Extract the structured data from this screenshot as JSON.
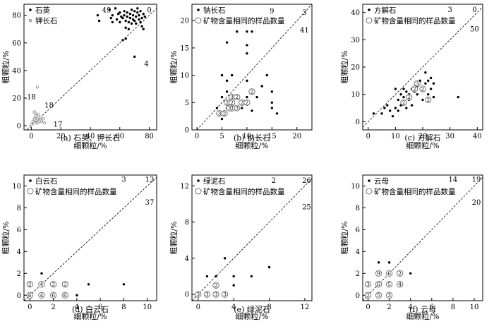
{
  "chart_data": [
    {
      "type": "scatter",
      "caption": "(a) 石英、钾长石",
      "xlabel": "细颗粒/%",
      "ylabel": "粗颗粒/%",
      "xlim": [
        -5,
        85
      ],
      "ylim": [
        -3,
        88
      ],
      "xticks": [
        0,
        20,
        40,
        60,
        80
      ],
      "yticks": [
        0,
        20,
        40,
        60,
        80
      ],
      "legend": [
        "石英",
        "钾长石"
      ],
      "counts": [
        {
          "text": "49",
          "x": 51,
          "y": 84
        },
        {
          "text": "0",
          "x": 80,
          "y": 84
        },
        {
          "text": "4",
          "x": 78,
          "y": 45
        },
        {
          "text": "18",
          "x": 0,
          "y": 21
        },
        {
          "text": "18",
          "x": 12,
          "y": 15
        },
        {
          "text": "17",
          "x": 18,
          "y": 1
        }
      ],
      "series": [
        {
          "name": "石英",
          "marker": "dot",
          "points": [
            [
              45,
              80
            ],
            [
              46,
              76
            ],
            [
              53,
              84
            ],
            [
              54,
              78
            ],
            [
              55,
              75
            ],
            [
              55,
              80
            ],
            [
              57,
              85
            ],
            [
              58,
              77
            ],
            [
              59,
              81
            ],
            [
              60,
              75
            ],
            [
              60,
              82
            ],
            [
              61,
              79
            ],
            [
              62,
              62
            ],
            [
              62,
              78
            ],
            [
              63,
              80
            ],
            [
              63,
              83
            ],
            [
              64,
              63
            ],
            [
              64,
              76
            ],
            [
              65,
              79
            ],
            [
              65,
              82
            ],
            [
              66,
              70
            ],
            [
              66,
              75
            ],
            [
              67,
              78
            ],
            [
              67,
              81
            ],
            [
              68,
              84
            ],
            [
              68,
              74
            ],
            [
              69,
              77
            ],
            [
              69,
              80
            ],
            [
              70,
              83
            ],
            [
              70,
              76
            ],
            [
              71,
              79
            ],
            [
              71,
              74
            ],
            [
              72,
              82
            ],
            [
              72,
              85
            ],
            [
              73,
              77
            ],
            [
              73,
              80
            ],
            [
              74,
              75
            ],
            [
              74,
              83
            ],
            [
              75,
              78
            ],
            [
              75,
              72
            ],
            [
              76,
              81
            ],
            [
              76,
              70
            ],
            [
              77,
              79
            ],
            [
              64,
              71
            ],
            [
              70,
              50
            ]
          ]
        },
        {
          "name": "钾长石",
          "marker": "open-small",
          "points": [
            [
              0,
              1
            ],
            [
              1,
              3
            ],
            [
              2,
              5
            ],
            [
              2,
              2
            ],
            [
              3,
              4
            ],
            [
              3,
              7
            ],
            [
              4,
              2
            ],
            [
              4,
              5
            ],
            [
              5,
              3
            ],
            [
              5,
              8
            ],
            [
              3,
              9
            ],
            [
              6,
              4
            ],
            [
              6,
              6
            ],
            [
              7,
              3
            ],
            [
              8,
              5
            ],
            [
              2,
              10
            ],
            [
              4,
              28
            ],
            [
              9,
              2
            ]
          ]
        }
      ]
    },
    {
      "type": "scatter",
      "caption": "(b) 钠长石",
      "xlabel": "细颗粒/%",
      "ylabel": "粗颗粒/%",
      "xlim": [
        -1,
        23
      ],
      "ylim": [
        0,
        23
      ],
      "xticks": [
        0,
        5,
        10,
        15,
        20
      ],
      "yticks": [
        0,
        5,
        10,
        15,
        20
      ],
      "legend": [
        "钠长石",
        "矿物含量相同的样品数量"
      ],
      "counts": [
        {
          "text": "9",
          "x": 15,
          "y": 21.8
        },
        {
          "text": "3",
          "x": 21.5,
          "y": 21.5
        },
        {
          "text": "41",
          "x": 21.5,
          "y": 18.3
        }
      ],
      "series": [
        {
          "name": "钠长石",
          "marker": "dot",
          "points": [
            [
              6,
              16
            ],
            [
              8,
              18
            ],
            [
              10,
              18
            ],
            [
              11,
              18
            ],
            [
              10,
              15.5
            ],
            [
              10,
              14
            ],
            [
              5,
              10
            ],
            [
              6,
              9
            ],
            [
              7,
              10
            ],
            [
              10,
              9
            ],
            [
              14,
              10
            ],
            [
              4,
              4
            ],
            [
              5,
              6
            ],
            [
              5,
              2
            ],
            [
              6,
              4
            ],
            [
              7,
              5
            ],
            [
              8,
              6
            ],
            [
              9,
              4
            ],
            [
              10,
              6
            ],
            [
              12,
              6
            ],
            [
              13,
              8
            ],
            [
              15,
              7
            ],
            [
              15,
              5
            ],
            [
              15,
              4
            ],
            [
              16,
              3
            ],
            [
              6,
              7
            ],
            [
              11,
              3.5
            ]
          ]
        },
        {
          "name": "矿物含量相同的样品数量",
          "marker": "circled",
          "points": [
            [
              4.5,
              3,
              "3"
            ],
            [
              5.5,
              3,
              "2"
            ],
            [
              6,
              5,
              "2"
            ],
            [
              7,
              6,
              "3"
            ],
            [
              8,
              6,
              "2"
            ],
            [
              7,
              5,
              "2"
            ],
            [
              8,
              4,
              "3"
            ],
            [
              7,
              4,
              "2"
            ],
            [
              9,
              5,
              "2"
            ],
            [
              10,
              5,
              "2"
            ],
            [
              11,
              7,
              "2"
            ],
            [
              6.5,
              4,
              "3"
            ]
          ]
        }
      ]
    },
    {
      "type": "scatter",
      "caption": "(c) 方解石",
      "xlabel": "细颗粒/%",
      "ylabel": "粗颗粒/%",
      "xlim": [
        -2,
        42
      ],
      "ylim": [
        -3,
        43
      ],
      "xticks": [
        0,
        10,
        20,
        30,
        40
      ],
      "yticks": [
        0,
        10,
        20,
        30,
        40
      ],
      "legend": [
        "方解石",
        "矿物含量相同的样品数量"
      ],
      "counts": [
        {
          "text": "3",
          "x": 30,
          "y": 41
        },
        {
          "text": "0",
          "x": 39,
          "y": 41
        },
        {
          "text": "50",
          "x": 39,
          "y": 34
        }
      ],
      "series": [
        {
          "name": "方解石",
          "marker": "dot",
          "points": [
            [
              2,
              3
            ],
            [
              5,
              3
            ],
            [
              6,
              5
            ],
            [
              7,
              6
            ],
            [
              8,
              4
            ],
            [
              9,
              2
            ],
            [
              10,
              5
            ],
            [
              10,
              12
            ],
            [
              11,
              8
            ],
            [
              11,
              4
            ],
            [
              12,
              10
            ],
            [
              12,
              6
            ],
            [
              13,
              9
            ],
            [
              13,
              12
            ],
            [
              14,
              5
            ],
            [
              14,
              11
            ],
            [
              15,
              10
            ],
            [
              15,
              8
            ],
            [
              16,
              12
            ],
            [
              16,
              6
            ],
            [
              17,
              11
            ],
            [
              18,
              10
            ],
            [
              18,
              13
            ],
            [
              19,
              15
            ],
            [
              20,
              12
            ],
            [
              20,
              8
            ],
            [
              21,
              18
            ],
            [
              21,
              14
            ],
            [
              22,
              10
            ],
            [
              22,
              15
            ],
            [
              23,
              12
            ],
            [
              23,
              16
            ],
            [
              24,
              9
            ],
            [
              24,
              14
            ],
            [
              33,
              9
            ]
          ]
        },
        {
          "name": "矿物含量相同的样品数量",
          "marker": "circled",
          "points": [
            [
              13,
              7,
              "2"
            ],
            [
              15,
              9,
              "2"
            ],
            [
              17,
              12,
              "2"
            ],
            [
              18,
              14,
              "3"
            ],
            [
              20,
              12,
              "2"
            ],
            [
              22,
              8,
              "2"
            ]
          ]
        }
      ]
    },
    {
      "type": "scatter",
      "caption": "(d) 白云石",
      "xlabel": "细颗粒/%",
      "ylabel": "粗颗粒/%",
      "xlim": [
        -0.5,
        10.8
      ],
      "ylim": [
        -0.5,
        11
      ],
      "xticks": [
        0,
        2,
        4,
        6,
        8,
        10
      ],
      "yticks": [
        0,
        2,
        4,
        6,
        8,
        10
      ],
      "legend": [
        "白云石",
        "矿物含量相同的样品数量"
      ],
      "counts": [
        {
          "text": "3",
          "x": 8,
          "y": 10.6
        },
        {
          "text": "13",
          "x": 10.2,
          "y": 10.6
        },
        {
          "text": "37",
          "x": 10.2,
          "y": 8.5
        }
      ],
      "series": [
        {
          "name": "白云石",
          "marker": "dot",
          "points": [
            [
              1,
              2
            ],
            [
              5,
              1
            ],
            [
              8,
              1
            ],
            [
              4,
              0
            ]
          ]
        },
        {
          "name": "矿物含量相同的样品数量",
          "marker": "circled",
          "points": [
            [
              0,
              1,
              "2"
            ],
            [
              1,
              1,
              "4"
            ],
            [
              2,
              1,
              "2"
            ],
            [
              3,
              1,
              "2"
            ],
            [
              0,
              0,
              "6"
            ],
            [
              1,
              0,
              "4"
            ],
            [
              2,
              0,
              "6"
            ],
            [
              3,
              0,
              "6"
            ]
          ]
        }
      ]
    },
    {
      "type": "scatter",
      "caption": "(e) 绿泥石",
      "xlabel": "细颗粒/%",
      "ylabel": "粗颗粒/%",
      "xlim": [
        -0.7,
        12.8
      ],
      "ylim": [
        -0.7,
        13.2
      ],
      "xticks": [
        0,
        4,
        8,
        12
      ],
      "yticks": [
        0,
        4,
        8,
        12
      ],
      "legend": [
        "绿泥石",
        "矿物含量相同的样品数量"
      ],
      "counts": [
        {
          "text": "2",
          "x": 8.5,
          "y": 12.6
        },
        {
          "text": "26",
          "x": 12.2,
          "y": 12.6
        },
        {
          "text": "25",
          "x": 12.2,
          "y": 9.7
        }
      ],
      "series": [
        {
          "name": "绿泥石",
          "marker": "dot",
          "points": [
            [
              1,
              2
            ],
            [
              2,
              2
            ],
            [
              3,
              4
            ],
            [
              4,
              1
            ],
            [
              4,
              2
            ],
            [
              6,
              2
            ],
            [
              8,
              3
            ]
          ]
        },
        {
          "name": "矿物含量相同的样品数量",
          "marker": "circled",
          "points": [
            [
              2,
              1,
              "2"
            ],
            [
              0,
              0,
              "3"
            ],
            [
              1,
              0,
              "3"
            ],
            [
              2,
              0,
              "3"
            ],
            [
              3,
              0,
              "3"
            ]
          ]
        }
      ]
    },
    {
      "type": "scatter",
      "caption": "(f) 云母",
      "xlabel": "细颗粒/%",
      "ylabel": "粗颗粒/%",
      "xlim": [
        -0.5,
        10.8
      ],
      "ylim": [
        -0.5,
        11
      ],
      "xticks": [
        0,
        2,
        4,
        6,
        8,
        10
      ],
      "yticks": [
        0,
        2,
        4,
        6,
        8,
        10
      ],
      "legend": [
        "云母",
        "矿物含量相同的样品数量"
      ],
      "counts": [
        {
          "text": "14",
          "x": 8,
          "y": 10.6
        },
        {
          "text": "19",
          "x": 10.2,
          "y": 10.6
        },
        {
          "text": "20",
          "x": 10.2,
          "y": 8.5
        }
      ],
      "series": [
        {
          "name": "云母",
          "marker": "dot",
          "points": [
            [
              1,
              3
            ],
            [
              2,
              3
            ],
            [
              4,
              2
            ]
          ]
        },
        {
          "name": "矿物含量相同的样品数量",
          "marker": "circled",
          "points": [
            [
              1,
              2,
              "9"
            ],
            [
              2,
              2,
              "6"
            ],
            [
              3,
              2,
              "2"
            ],
            [
              0,
              1,
              "3"
            ],
            [
              1,
              1,
              "6"
            ],
            [
              2,
              1,
              "5"
            ],
            [
              3,
              1,
              "4"
            ],
            [
              0,
              0,
              "2"
            ],
            [
              1,
              0,
              "5"
            ],
            [
              2,
              0,
              "3"
            ]
          ]
        }
      ]
    }
  ]
}
